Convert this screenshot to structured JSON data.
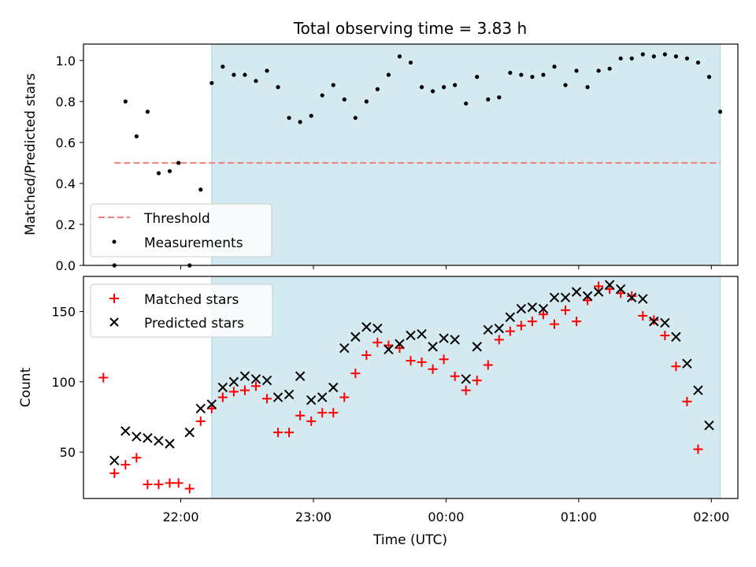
{
  "chart_data": [
    {
      "type": "scatter",
      "title": "Total observing time = 3.83 h",
      "xlabel": "",
      "ylabel": "Matched/Predicted stars",
      "ylim": [
        0,
        1.08
      ],
      "yticks": [
        0.0,
        0.2,
        0.4,
        0.6,
        0.8,
        1.0
      ],
      "ytick_labels": [
        "0.0",
        "0.2",
        "0.4",
        "0.6",
        "0.8",
        "1.0"
      ],
      "shaded_span": {
        "start": "22:14",
        "end": "02:04",
        "color": "#d4eaf0"
      },
      "threshold": {
        "name": "Threshold",
        "value": 0.5,
        "from": "21:30",
        "to": "02:04",
        "color": "#f08080"
      },
      "legend": {
        "placement": "lower-left",
        "entries": [
          "Threshold",
          "Measurements"
        ]
      },
      "series": [
        {
          "name": "Measurements",
          "marker": "dot",
          "color": "#000000",
          "points": [
            [
              "21:30",
              0.0
            ],
            [
              "21:35",
              0.8
            ],
            [
              "21:40",
              0.63
            ],
            [
              "21:45",
              0.75
            ],
            [
              "21:50",
              0.45
            ],
            [
              "21:55",
              0.46
            ],
            [
              "21:59",
              0.5
            ],
            [
              "22:04",
              0.0
            ],
            [
              "22:09",
              0.37
            ],
            [
              "22:14",
              0.89
            ],
            [
              "22:19",
              0.97
            ],
            [
              "22:24",
              0.93
            ],
            [
              "22:29",
              0.93
            ],
            [
              "22:34",
              0.9
            ],
            [
              "22:39",
              0.95
            ],
            [
              "22:44",
              0.87
            ],
            [
              "22:49",
              0.72
            ],
            [
              "22:54",
              0.7
            ],
            [
              "22:59",
              0.73
            ],
            [
              "23:04",
              0.83
            ],
            [
              "23:09",
              0.88
            ],
            [
              "23:14",
              0.81
            ],
            [
              "23:19",
              0.72
            ],
            [
              "23:24",
              0.8
            ],
            [
              "23:29",
              0.86
            ],
            [
              "23:34",
              0.93
            ],
            [
              "23:39",
              1.02
            ],
            [
              "23:44",
              0.99
            ],
            [
              "23:49",
              0.87
            ],
            [
              "23:54",
              0.85
            ],
            [
              "23:59",
              0.87
            ],
            [
              "00:04",
              0.88
            ],
            [
              "00:09",
              0.79
            ],
            [
              "00:14",
              0.92
            ],
            [
              "00:19",
              0.81
            ],
            [
              "00:24",
              0.82
            ],
            [
              "00:29",
              0.94
            ],
            [
              "00:34",
              0.93
            ],
            [
              "00:39",
              0.92
            ],
            [
              "00:44",
              0.93
            ],
            [
              "00:49",
              0.97
            ],
            [
              "00:54",
              0.88
            ],
            [
              "00:59",
              0.95
            ],
            [
              "01:04",
              0.87
            ],
            [
              "01:09",
              0.95
            ],
            [
              "01:14",
              0.96
            ],
            [
              "01:19",
              1.01
            ],
            [
              "01:24",
              1.01
            ],
            [
              "01:29",
              1.03
            ],
            [
              "01:34",
              1.02
            ],
            [
              "01:39",
              1.03
            ],
            [
              "01:44",
              1.02
            ],
            [
              "01:49",
              1.01
            ],
            [
              "01:54",
              0.99
            ],
            [
              "01:59",
              0.92
            ],
            [
              "02:04",
              0.75
            ]
          ]
        }
      ]
    },
    {
      "type": "scatter",
      "title": "",
      "xlabel": "Time (UTC)",
      "ylabel": "Count",
      "ylim": [
        17,
        175
      ],
      "yticks": [
        50,
        100,
        150
      ],
      "ytick_labels": [
        "50",
        "100",
        "150"
      ],
      "xticks": [
        "22:00",
        "23:00",
        "00:00",
        "01:00",
        "02:00"
      ],
      "xtick_labels": [
        "22:00",
        "23:00",
        "00:00",
        "01:00",
        "02:00"
      ],
      "xlim": [
        "21:16",
        "02:12"
      ],
      "shaded_span": {
        "start": "22:14",
        "end": "02:04",
        "color": "#d4eaf0"
      },
      "legend": {
        "placement": "upper-left",
        "entries": [
          "Matched stars",
          "Predicted stars"
        ]
      },
      "series": [
        {
          "name": "Matched stars",
          "marker": "plus",
          "color": "#ff0000",
          "points": [
            [
              "21:25",
              103
            ],
            [
              "21:30",
              35
            ],
            [
              "21:35",
              41
            ],
            [
              "21:40",
              46
            ],
            [
              "21:45",
              27
            ],
            [
              "21:50",
              27
            ],
            [
              "21:55",
              28
            ],
            [
              "21:59",
              28
            ],
            [
              "22:04",
              24
            ],
            [
              "22:09",
              72
            ],
            [
              "22:14",
              81
            ],
            [
              "22:19",
              89
            ],
            [
              "22:24",
              93
            ],
            [
              "22:29",
              94
            ],
            [
              "22:34",
              97
            ],
            [
              "22:39",
              88
            ],
            [
              "22:44",
              64
            ],
            [
              "22:49",
              64
            ],
            [
              "22:54",
              76
            ],
            [
              "22:59",
              72
            ],
            [
              "23:04",
              78
            ],
            [
              "23:09",
              78
            ],
            [
              "23:14",
              89
            ],
            [
              "23:19",
              106
            ],
            [
              "23:24",
              119
            ],
            [
              "23:29",
              128
            ],
            [
              "23:34",
              126
            ],
            [
              "23:39",
              124
            ],
            [
              "23:44",
              115
            ],
            [
              "23:49",
              114
            ],
            [
              "23:54",
              109
            ],
            [
              "23:59",
              116
            ],
            [
              "00:04",
              104
            ],
            [
              "00:09",
              94
            ],
            [
              "00:14",
              101
            ],
            [
              "00:19",
              112
            ],
            [
              "00:24",
              130
            ],
            [
              "00:29",
              136
            ],
            [
              "00:34",
              140
            ],
            [
              "00:39",
              143
            ],
            [
              "00:44",
              148
            ],
            [
              "00:49",
              141
            ],
            [
              "00:54",
              151
            ],
            [
              "00:59",
              143
            ],
            [
              "01:04",
              158
            ],
            [
              "01:09",
              168
            ],
            [
              "01:14",
              166
            ],
            [
              "01:19",
              163
            ],
            [
              "01:24",
              161
            ],
            [
              "01:29",
              147
            ],
            [
              "01:34",
              144
            ],
            [
              "01:39",
              133
            ],
            [
              "01:44",
              111
            ],
            [
              "01:49",
              86
            ],
            [
              "01:54",
              52
            ]
          ]
        },
        {
          "name": "Predicted stars",
          "marker": "x",
          "color": "#000000",
          "points": [
            [
              "21:30",
              44
            ],
            [
              "21:35",
              65
            ],
            [
              "21:40",
              61
            ],
            [
              "21:45",
              60
            ],
            [
              "21:50",
              58
            ],
            [
              "21:55",
              56
            ],
            [
              "22:04",
              64
            ],
            [
              "22:09",
              81
            ],
            [
              "22:14",
              84
            ],
            [
              "22:19",
              96
            ],
            [
              "22:24",
              100
            ],
            [
              "22:29",
              104
            ],
            [
              "22:34",
              102
            ],
            [
              "22:39",
              101
            ],
            [
              "22:44",
              89
            ],
            [
              "22:49",
              91
            ],
            [
              "22:54",
              104
            ],
            [
              "22:59",
              87
            ],
            [
              "23:04",
              89
            ],
            [
              "23:09",
              96
            ],
            [
              "23:14",
              124
            ],
            [
              "23:19",
              132
            ],
            [
              "23:24",
              139
            ],
            [
              "23:29",
              138
            ],
            [
              "23:34",
              123
            ],
            [
              "23:39",
              127
            ],
            [
              "23:44",
              133
            ],
            [
              "23:49",
              134
            ],
            [
              "23:54",
              125
            ],
            [
              "23:59",
              131
            ],
            [
              "00:04",
              130
            ],
            [
              "00:09",
              102
            ],
            [
              "00:14",
              125
            ],
            [
              "00:19",
              137
            ],
            [
              "00:24",
              138
            ],
            [
              "00:29",
              146
            ],
            [
              "00:34",
              152
            ],
            [
              "00:39",
              153
            ],
            [
              "00:44",
              152
            ],
            [
              "00:49",
              160
            ],
            [
              "00:54",
              160
            ],
            [
              "00:59",
              164
            ],
            [
              "01:04",
              161
            ],
            [
              "01:09",
              164
            ],
            [
              "01:14",
              169
            ],
            [
              "01:19",
              166
            ],
            [
              "01:24",
              160
            ],
            [
              "01:29",
              159
            ],
            [
              "01:34",
              143
            ],
            [
              "01:39",
              142
            ],
            [
              "01:44",
              132
            ],
            [
              "01:49",
              113
            ],
            [
              "01:54",
              94
            ],
            [
              "01:59",
              69
            ]
          ]
        }
      ]
    }
  ]
}
